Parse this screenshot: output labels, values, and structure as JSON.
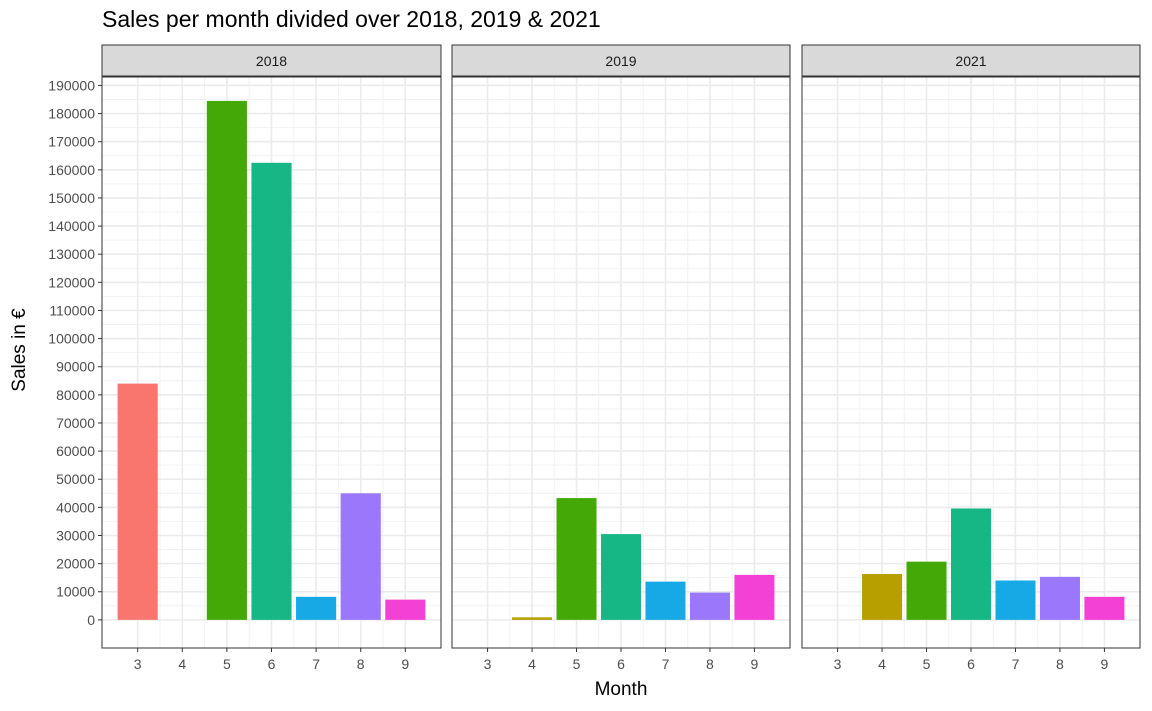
{
  "chart_data": {
    "type": "bar",
    "title": "Sales per month divided over 2018, 2019 & 2021",
    "xlabel": "Month",
    "ylabel": "Sales in €",
    "ylim": [
      -10000,
      193000
    ],
    "yticks": [
      0,
      10000,
      20000,
      30000,
      40000,
      50000,
      60000,
      70000,
      80000,
      90000,
      100000,
      110000,
      120000,
      130000,
      140000,
      150000,
      160000,
      170000,
      180000,
      190000
    ],
    "categories": [
      3,
      4,
      5,
      6,
      7,
      8,
      9
    ],
    "colors": {
      "3": "#f8766d",
      "4": "#b79f00",
      "5": "#44a907",
      "6": "#17b785",
      "7": "#17a9e6",
      "8": "#9a77fb",
      "9": "#f441d5"
    },
    "grid": true,
    "legend": "none",
    "facets": [
      {
        "label": "2018",
        "values": [
          84000,
          0,
          184500,
          162500,
          8200,
          45000,
          7200
        ]
      },
      {
        "label": "2019",
        "values": [
          0,
          900,
          43300,
          30500,
          13600,
          9700,
          16000
        ]
      },
      {
        "label": "2021",
        "values": [
          0,
          16300,
          20700,
          39600,
          14000,
          15300,
          8200
        ]
      }
    ]
  }
}
